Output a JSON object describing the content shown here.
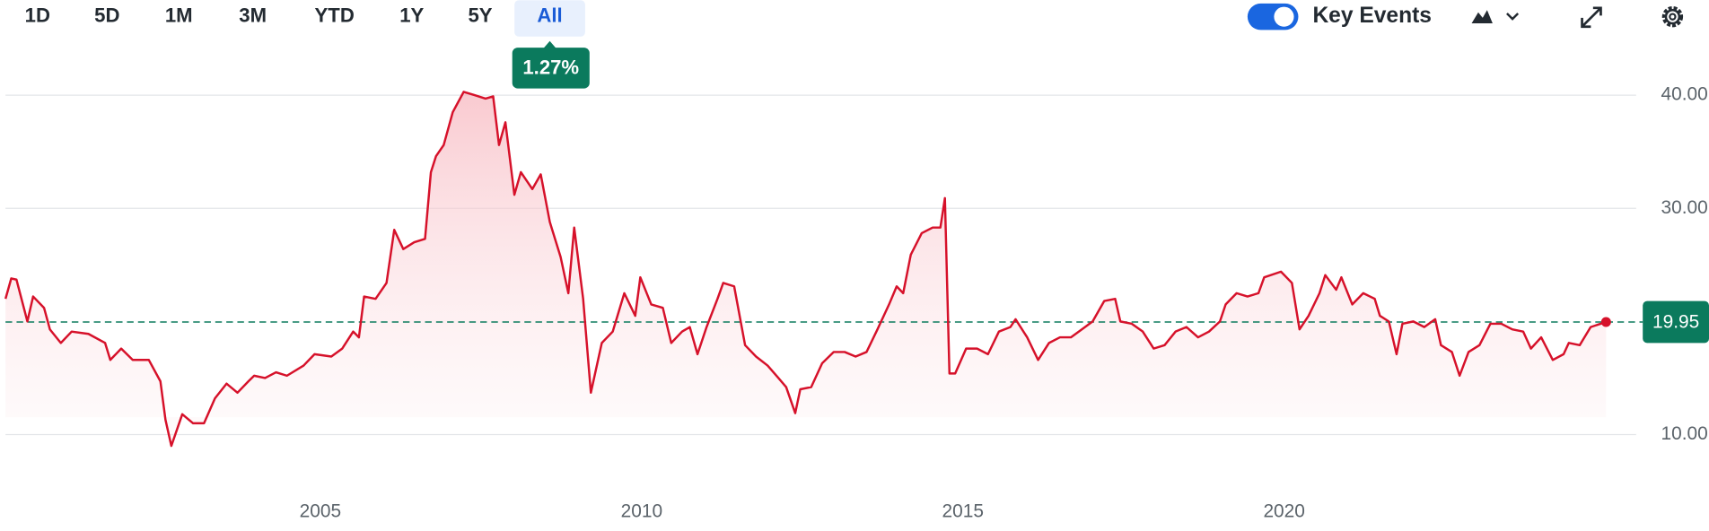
{
  "toolbar": {
    "ranges": [
      "1D",
      "5D",
      "1M",
      "3M",
      "YTD",
      "1Y",
      "5Y",
      "All"
    ],
    "selected": 7,
    "change_label": "1.27%",
    "key_events": "Key Events"
  },
  "chart_data": {
    "type": "line",
    "color": "#d6112a",
    "x": [
      2000.1,
      2000.19,
      2000.27,
      2000.44,
      2000.53,
      2000.7,
      2000.79,
      2000.96,
      2001.13,
      2001.39,
      2001.65,
      2001.73,
      2001.9,
      2002.08,
      2002.33,
      2002.51,
      2002.59,
      2002.68,
      2002.85,
      2003.02,
      2003.19,
      2003.36,
      2003.54,
      2003.71,
      2003.88,
      2003.97,
      2004.14,
      2004.31,
      2004.48,
      2004.74,
      2004.91,
      2005.17,
      2005.34,
      2005.51,
      2005.6,
      2005.68,
      2005.86,
      2006.03,
      2006.15,
      2006.29,
      2006.46,
      2006.63,
      2006.72,
      2006.8,
      2006.92,
      2007.06,
      2007.23,
      2007.4,
      2007.57,
      2007.69,
      2007.78,
      2007.88,
      2008.02,
      2008.12,
      2008.3,
      2008.43,
      2008.57,
      2008.74,
      2008.86,
      2008.95,
      2009.09,
      2009.21,
      2009.38,
      2009.55,
      2009.73,
      2009.9,
      2009.98,
      2010.15,
      2010.33,
      2010.46,
      2010.63,
      2010.75,
      2010.87,
      2011.01,
      2011.18,
      2011.27,
      2011.44,
      2011.61,
      2011.78,
      2011.96,
      2012.13,
      2012.25,
      2012.39,
      2012.47,
      2012.64,
      2012.81,
      2012.99,
      2013.16,
      2013.33,
      2013.5,
      2013.67,
      2013.85,
      2013.97,
      2014.07,
      2014.19,
      2014.36,
      2014.53,
      2014.65,
      2014.72,
      2014.79,
      2014.88,
      2015.05,
      2015.22,
      2015.39,
      2015.56,
      2015.74,
      2015.82,
      2016.0,
      2016.17,
      2016.34,
      2016.51,
      2016.68,
      2016.85,
      2017.02,
      2017.2,
      2017.37,
      2017.45,
      2017.63,
      2017.8,
      2017.97,
      2018.14,
      2018.31,
      2018.48,
      2018.66,
      2018.83,
      2019.0,
      2019.09,
      2019.26,
      2019.43,
      2019.6,
      2019.69,
      2019.95,
      2020.12,
      2020.24,
      2020.38,
      2020.55,
      2020.64,
      2020.81,
      2020.89,
      2021.06,
      2021.23,
      2021.41,
      2021.49,
      2021.63,
      2021.75,
      2021.84,
      2022.01,
      2022.18,
      2022.35,
      2022.44,
      2022.61,
      2022.73,
      2022.87,
      2023.04,
      2023.21,
      2023.38,
      2023.55,
      2023.72,
      2023.84,
      2024.0,
      2024.18,
      2024.35,
      2024.43,
      2024.6,
      2024.77,
      2025.01
    ],
    "values": [
      22.0,
      23.8,
      23.7,
      20.0,
      22.2,
      21.2,
      19.3,
      18.1,
      19.1,
      18.9,
      18.1,
      16.6,
      17.6,
      16.6,
      16.6,
      14.7,
      11.3,
      9.0,
      11.8,
      11.0,
      11.0,
      13.2,
      14.5,
      13.7,
      14.7,
      15.2,
      15.0,
      15.5,
      15.2,
      16.1,
      17.1,
      16.9,
      17.6,
      19.1,
      18.6,
      22.2,
      22.0,
      23.4,
      28.1,
      26.4,
      27.0,
      27.3,
      33.2,
      34.6,
      35.6,
      38.5,
      40.3,
      40.0,
      39.7,
      39.9,
      35.6,
      37.6,
      31.2,
      33.2,
      31.7,
      33.0,
      28.8,
      25.7,
      22.5,
      28.3,
      22.0,
      13.7,
      18.1,
      19.1,
      22.5,
      20.5,
      23.9,
      21.5,
      21.2,
      18.1,
      19.1,
      19.5,
      17.1,
      19.5,
      22.0,
      23.4,
      23.1,
      17.9,
      16.9,
      16.1,
      15.0,
      14.2,
      11.9,
      14.0,
      14.2,
      16.3,
      17.3,
      17.3,
      16.9,
      17.3,
      19.3,
      21.5,
      23.1,
      22.5,
      25.9,
      27.8,
      28.3,
      28.3,
      30.9,
      15.4,
      15.4,
      17.6,
      17.6,
      17.1,
      19.1,
      19.5,
      20.2,
      18.6,
      16.6,
      18.1,
      18.6,
      18.6,
      19.3,
      20.0,
      21.8,
      22.0,
      20.0,
      19.8,
      19.1,
      17.6,
      17.9,
      19.1,
      19.5,
      18.6,
      19.1,
      20.0,
      21.5,
      22.5,
      22.2,
      22.5,
      23.9,
      24.4,
      23.4,
      19.3,
      20.5,
      22.5,
      24.1,
      22.8,
      23.9,
      21.5,
      22.5,
      22.0,
      20.5,
      20.0,
      17.1,
      19.8,
      20.0,
      19.5,
      20.2,
      17.9,
      17.3,
      15.2,
      17.3,
      17.9,
      19.8,
      19.8,
      19.3,
      19.1,
      17.6,
      18.6,
      16.6,
      17.1,
      18.1,
      17.9,
      19.5,
      19.95
    ],
    "reference_value": 19.95,
    "xlim": [
      2000.1,
      2025.1
    ],
    "xticks": [
      2005,
      2010,
      2015,
      2020
    ],
    "ylim": [
      5,
      44.5
    ],
    "yticks": [
      {
        "value": 10,
        "label": "10.00"
      },
      {
        "value": 30,
        "label": "30.00"
      },
      {
        "value": 40,
        "label": "40.00"
      }
    ],
    "grid": true
  }
}
